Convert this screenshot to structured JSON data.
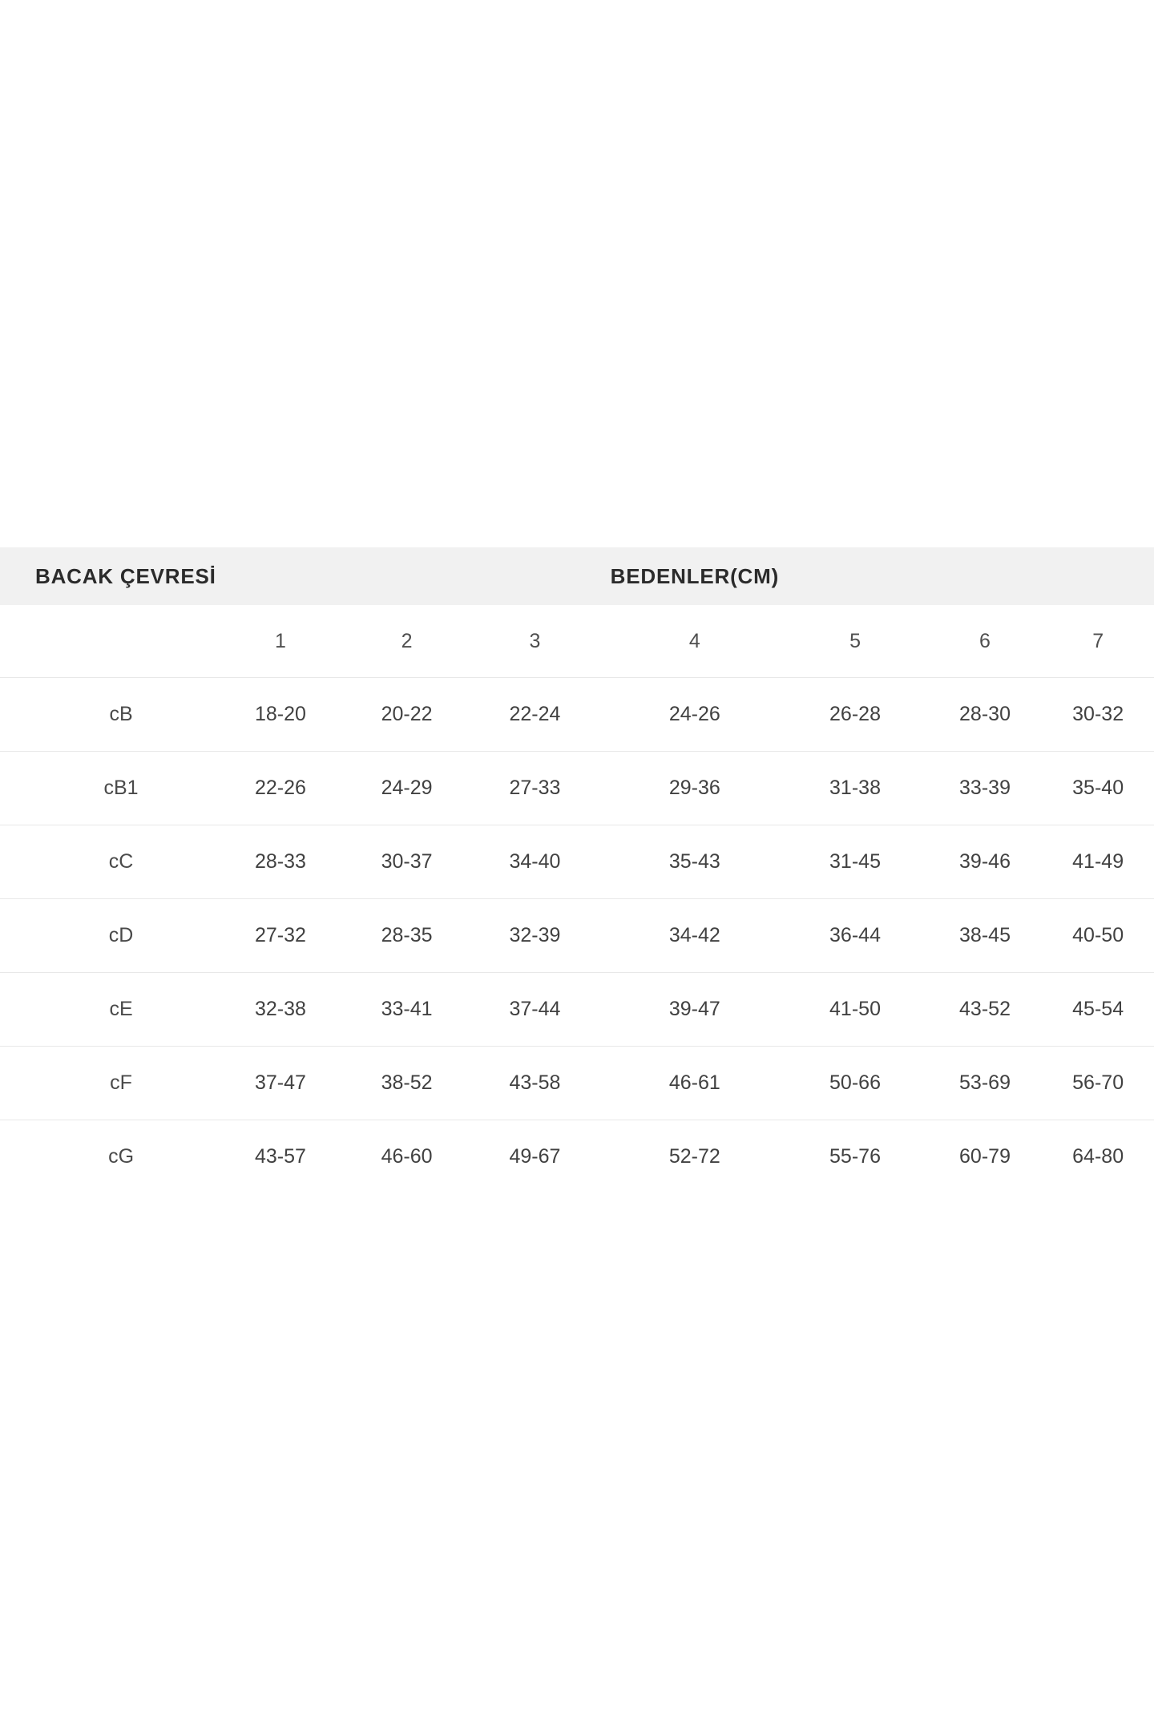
{
  "table": {
    "header": {
      "left_label": "BACAK ÇEVRESİ",
      "right_label": "BEDENLER(CM)"
    },
    "size_columns": [
      "1",
      "2",
      "3",
      "4",
      "5",
      "6",
      "7"
    ],
    "rows": [
      {
        "label": "cB",
        "values": [
          "18-20",
          "20-22",
          "22-24",
          "24-26",
          "26-28",
          "28-30",
          "30-32"
        ]
      },
      {
        "label": "cB1",
        "values": [
          "22-26",
          "24-29",
          "27-33",
          "29-36",
          "31-38",
          "33-39",
          "35-40"
        ]
      },
      {
        "label": "cC",
        "values": [
          "28-33",
          "30-37",
          "34-40",
          "35-43",
          "31-45",
          "39-46",
          "41-49"
        ]
      },
      {
        "label": "cD",
        "values": [
          "27-32",
          "28-35",
          "32-39",
          "34-42",
          "36-44",
          "38-45",
          "40-50"
        ]
      },
      {
        "label": "cE",
        "values": [
          "32-38",
          "33-41",
          "37-44",
          "39-47",
          "41-50",
          "43-52",
          "45-54"
        ]
      },
      {
        "label": "cF",
        "values": [
          "37-47",
          "38-52",
          "43-58",
          "46-61",
          "50-66",
          "53-69",
          "56-70"
        ]
      },
      {
        "label": "cG",
        "values": [
          "43-57",
          "46-60",
          "49-67",
          "52-72",
          "55-76",
          "60-79",
          "64-80"
        ]
      }
    ],
    "colors": {
      "page_bg": "#ffffff",
      "header_band_bg": "#f1f1f1",
      "row_divider": "#e8e8e8",
      "header_text": "#2b2b2b",
      "value_text": "#414141"
    }
  }
}
